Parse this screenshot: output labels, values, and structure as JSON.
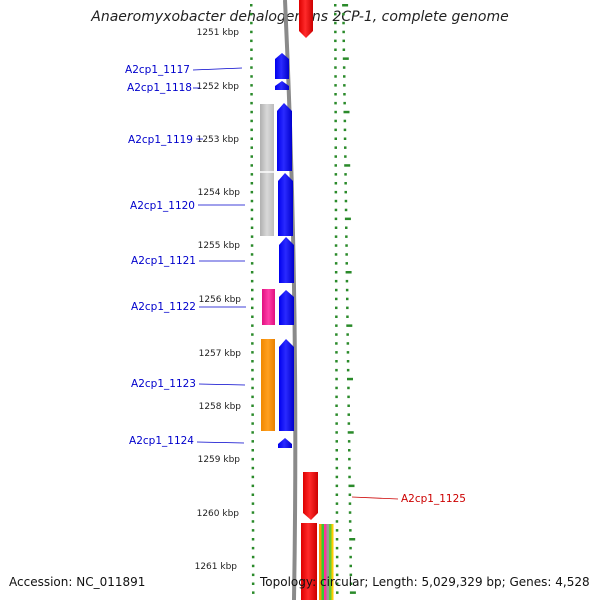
{
  "title": "Anaeromyxobacter dehalogenans 2CP-1, complete genome",
  "footer": {
    "accession": "Accession: NC_011891",
    "topology": "Topology: circular; Length: 5,029,329 bp; Genes: 4,528"
  },
  "scale": {
    "ticks": [
      "1251 kbp",
      "1252 kbp",
      "1253 kbp",
      "1254 kbp",
      "1255 kbp",
      "1256 kbp",
      "1257 kbp",
      "1258 kbp",
      "1259 kbp",
      "1260 kbp",
      "1261 kbp"
    ]
  },
  "genes": [
    {
      "label": "A2cp1_1117",
      "color": "#0000cc"
    },
    {
      "label": "A2cp1_1118",
      "color": "#0000cc"
    },
    {
      "label": "A2cp1_1119",
      "color": "#0000cc"
    },
    {
      "label": "A2cp1_1120",
      "color": "#0000cc"
    },
    {
      "label": "A2cp1_1121",
      "color": "#0000cc"
    },
    {
      "label": "A2cp1_1122",
      "color": "#0000cc"
    },
    {
      "label": "A2cp1_1123",
      "color": "#0000cc"
    },
    {
      "label": "A2cp1_1124",
      "color": "#0000cc"
    },
    {
      "label": "A2cp1_1125",
      "color": "#cc0000"
    }
  ],
  "colors": {
    "forward_cds": "#0000ff",
    "reverse_cds": "#ff0000",
    "feature_gray": "#c8c8c8",
    "feature_magenta": "#ff3399",
    "feature_orange": "#ff9900",
    "ring_dots": "#2a8a2a",
    "backbone": "#808080"
  }
}
